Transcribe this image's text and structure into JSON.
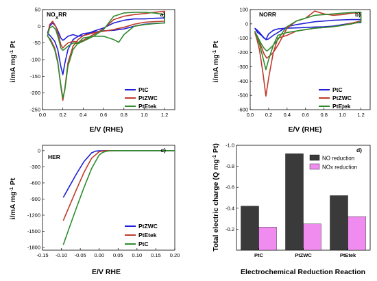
{
  "chart_data": [
    {
      "id": "a",
      "type": "line",
      "panel_letter": "a)",
      "panel_label": "NO",
      "panel_label_sub": "X",
      "panel_label_suffix": "RR",
      "xlabel": "E/V (RHE)",
      "ylabel": "i/mA mg",
      "ylabel_sup": "-1",
      "ylabel_suffix": " Pt",
      "xlim": [
        0,
        1.3
      ],
      "ylim": [
        -250,
        50
      ],
      "xticks": [
        0.0,
        0.2,
        0.4,
        0.6,
        0.8,
        1.0,
        1.2
      ],
      "xtick_labels": [
        "0.0",
        "0.2",
        "0.4",
        "0.6",
        "0.8",
        "1.0",
        "1.2"
      ],
      "yticks": [
        50,
        0,
        -50,
        -100,
        -150,
        -200,
        -250
      ],
      "ytick_labels": [
        "50",
        "0",
        "-50",
        "-100",
        "-150",
        "-200",
        "-250"
      ],
      "legend_position": "bottom-right",
      "series": [
        {
          "name": "PtC",
          "color": "#1f1fd8",
          "x": [
            0.05,
            0.07,
            0.1,
            0.13,
            0.16,
            0.18,
            0.2,
            0.22,
            0.25,
            0.3,
            0.35,
            0.4,
            0.5,
            0.6,
            0.7,
            0.8,
            0.9,
            1.0,
            1.1,
            1.2,
            1.2,
            1.1,
            1.0,
            0.9,
            0.8,
            0.75,
            0.7,
            0.6,
            0.5,
            0.4,
            0.35,
            0.3,
            0.25,
            0.22,
            0.2,
            0.18,
            0.15,
            0.12,
            0.08,
            0.05
          ],
          "y": [
            -20,
            0,
            10,
            0,
            -20,
            -35,
            -42,
            -38,
            -30,
            -25,
            -30,
            -28,
            -15,
            -5,
            10,
            18,
            22,
            22,
            24,
            25,
            10,
            9,
            6,
            0,
            -8,
            -10,
            -12,
            -14,
            -18,
            -22,
            -30,
            -40,
            -70,
            -110,
            -145,
            -120,
            -70,
            -45,
            -30,
            -20
          ]
        },
        {
          "name": "PtZWC",
          "color": "#c0392b",
          "x": [
            0.05,
            0.07,
            0.1,
            0.13,
            0.16,
            0.18,
            0.2,
            0.22,
            0.25,
            0.3,
            0.35,
            0.4,
            0.5,
            0.6,
            0.7,
            0.8,
            0.9,
            1.0,
            1.1,
            1.2,
            1.2,
            1.1,
            1.0,
            0.9,
            0.8,
            0.75,
            0.7,
            0.6,
            0.5,
            0.4,
            0.35,
            0.3,
            0.25,
            0.22,
            0.2,
            0.18,
            0.15,
            0.12,
            0.08,
            0.05
          ],
          "y": [
            -30,
            5,
            15,
            0,
            -30,
            -55,
            -65,
            -58,
            -50,
            -45,
            -48,
            -42,
            -25,
            -8,
            20,
            30,
            35,
            38,
            42,
            45,
            15,
            14,
            12,
            6,
            -3,
            -6,
            -10,
            -15,
            -20,
            -28,
            -40,
            -60,
            -110,
            -185,
            -222,
            -180,
            -105,
            -65,
            -40,
            -30
          ]
        },
        {
          "name": "PtEtek",
          "color": "#2e8b2e",
          "x": [
            0.05,
            0.07,
            0.1,
            0.13,
            0.16,
            0.18,
            0.2,
            0.22,
            0.25,
            0.3,
            0.35,
            0.4,
            0.5,
            0.6,
            0.7,
            0.8,
            0.9,
            1.0,
            1.1,
            1.2,
            1.2,
            1.1,
            1.0,
            0.9,
            0.8,
            0.75,
            0.7,
            0.6,
            0.5,
            0.4,
            0.35,
            0.3,
            0.25,
            0.22,
            0.2,
            0.18,
            0.15,
            0.12,
            0.08,
            0.05
          ],
          "y": [
            -28,
            -5,
            0,
            -10,
            -40,
            -65,
            -72,
            -68,
            -60,
            -50,
            -52,
            -45,
            -30,
            -10,
            30,
            40,
            42,
            42,
            40,
            35,
            10,
            8,
            5,
            0,
            -25,
            -48,
            -40,
            -30,
            -30,
            -35,
            -50,
            -70,
            -120,
            -190,
            -215,
            -175,
            -110,
            -70,
            -45,
            -28
          ]
        }
      ]
    },
    {
      "id": "b",
      "type": "line",
      "panel_letter": "b)",
      "panel_label": "NORR",
      "xlabel": "E/V (RHE)",
      "ylabel": "i/mA mg",
      "ylabel_sup": "-1",
      "ylabel_suffix": " Pt",
      "xlim": [
        0,
        1.3
      ],
      "ylim": [
        -600,
        100
      ],
      "xticks": [
        0.0,
        0.2,
        0.4,
        0.6,
        0.8,
        1.0,
        1.2
      ],
      "xtick_labels": [
        "0.0",
        "0.2",
        "0.4",
        "0.6",
        "0.8",
        "1.0",
        "1.2"
      ],
      "yticks": [
        100,
        0,
        -100,
        -200,
        -300,
        -400,
        -500,
        -600
      ],
      "ytick_labels": [
        "100",
        "0",
        "-100",
        "-200",
        "-300",
        "-400",
        "-500",
        "-600"
      ],
      "legend_position": "bottom-right",
      "series": [
        {
          "name": "PtC",
          "color": "#1f1fd8",
          "x": [
            0.05,
            0.08,
            0.12,
            0.15,
            0.18,
            0.2,
            0.25,
            0.3,
            0.35,
            0.4,
            0.5,
            0.6,
            0.7,
            0.8,
            0.9,
            1.0,
            1.1,
            1.2,
            1.2,
            1.1,
            1.0,
            0.9,
            0.8,
            0.7,
            0.6,
            0.5,
            0.4,
            0.3,
            0.25,
            0.2,
            0.17,
            0.14,
            0.1,
            0.07,
            0.05
          ],
          "y": [
            -30,
            -60,
            -80,
            -100,
            -110,
            -105,
            -80,
            -60,
            -40,
            -20,
            -5,
            5,
            15,
            20,
            25,
            28,
            30,
            30,
            10,
            5,
            -5,
            -15,
            -20,
            -22,
            -25,
            -28,
            -30,
            -35,
            -45,
            -70,
            -110,
            -90,
            -60,
            -40,
            -30
          ]
        },
        {
          "name": "PtZWC",
          "color": "#c0392b",
          "x": [
            0.05,
            0.08,
            0.12,
            0.15,
            0.18,
            0.2,
            0.25,
            0.3,
            0.35,
            0.4,
            0.5,
            0.6,
            0.7,
            0.8,
            0.9,
            1.0,
            1.1,
            1.2,
            1.2,
            1.1,
            1.0,
            0.9,
            0.8,
            0.7,
            0.6,
            0.5,
            0.4,
            0.3,
            0.25,
            0.2,
            0.17,
            0.14,
            0.1,
            0.07,
            0.05
          ],
          "y": [
            -60,
            -100,
            -160,
            -210,
            -240,
            -230,
            -200,
            -150,
            -90,
            -30,
            20,
            40,
            90,
            70,
            60,
            65,
            75,
            80,
            20,
            5,
            -10,
            -20,
            -25,
            -30,
            -40,
            -50,
            -80,
            -100,
            -200,
            -380,
            -505,
            -350,
            -180,
            -100,
            -60
          ]
        },
        {
          "name": "PtEtek",
          "color": "#2e8b2e",
          "x": [
            0.05,
            0.08,
            0.12,
            0.15,
            0.18,
            0.2,
            0.25,
            0.3,
            0.35,
            0.4,
            0.5,
            0.6,
            0.7,
            0.8,
            0.9,
            1.0,
            1.1,
            1.2,
            1.2,
            1.1,
            1.0,
            0.9,
            0.8,
            0.7,
            0.6,
            0.5,
            0.4,
            0.3,
            0.25,
            0.2,
            0.17,
            0.14,
            0.1,
            0.07,
            0.05
          ],
          "y": [
            -50,
            -90,
            -140,
            -170,
            -190,
            -180,
            -150,
            -110,
            -60,
            -20,
            20,
            40,
            60,
            65,
            70,
            75,
            80,
            82,
            15,
            0,
            -10,
            -20,
            -25,
            -30,
            -40,
            -50,
            -60,
            -80,
            -150,
            -250,
            -320,
            -240,
            -140,
            -80,
            -50
          ]
        }
      ]
    },
    {
      "id": "c",
      "type": "line",
      "panel_letter": "c)",
      "panel_label": "HER",
      "xlabel": "E/V RHE",
      "ylabel": "i/mA mg",
      "ylabel_sup": "-1",
      "ylabel_suffix": " Pt",
      "xlim": [
        -0.15,
        0.2
      ],
      "ylim": [
        -1850,
        100
      ],
      "xticks": [
        -0.15,
        -0.1,
        -0.05,
        0.0,
        0.05,
        0.1,
        0.15,
        0.2
      ],
      "xtick_labels": [
        "-0.15",
        "-0.10",
        "-0.05",
        "0.00",
        "0.05",
        "0.10",
        "0.15",
        "0.20"
      ],
      "yticks": [
        0,
        -300,
        -600,
        -900,
        -1200,
        -1500,
        -1800
      ],
      "ytick_labels": [
        "0",
        "-300",
        "-600",
        "-900",
        "-1200",
        "-1500",
        "-1800"
      ],
      "legend_position": "bottom-right",
      "series": [
        {
          "name": "PtZWC",
          "color": "#1f1fd8",
          "x": [
            -0.095,
            -0.08,
            -0.06,
            -0.04,
            -0.02,
            -0.01,
            0.0,
            0.02,
            0.05,
            0.1,
            0.15,
            0.2
          ],
          "y": [
            -870,
            -680,
            -430,
            -200,
            -40,
            -10,
            -3,
            0,
            0,
            0,
            0,
            0
          ]
        },
        {
          "name": "PtEtek",
          "color": "#c0392b",
          "x": [
            -0.095,
            -0.08,
            -0.06,
            -0.04,
            -0.02,
            0.0,
            0.01,
            0.02,
            0.05,
            0.1,
            0.15,
            0.2
          ],
          "y": [
            -1300,
            -1050,
            -720,
            -400,
            -140,
            -20,
            -5,
            0,
            0,
            0,
            0,
            0
          ]
        },
        {
          "name": "PtC",
          "color": "#2e8b2e",
          "x": [
            -0.095,
            -0.08,
            -0.06,
            -0.04,
            -0.02,
            0.0,
            0.01,
            0.02,
            0.03,
            0.05,
            0.1,
            0.15,
            0.2
          ],
          "y": [
            -1750,
            -1450,
            -1060,
            -680,
            -330,
            -80,
            -30,
            -10,
            -2,
            0,
            0,
            0,
            0
          ]
        }
      ]
    },
    {
      "id": "d",
      "type": "bar",
      "panel_letter": "d)",
      "xlabel": "Electrochemical Reduction Reaction",
      "ylabel": "Total electric charge (Q mg",
      "ylabel_sup": "-1",
      "ylabel_suffix": " Pt)",
      "categories": [
        "PtC",
        "PtZWC",
        "PtEtek"
      ],
      "ylim": [
        0,
        -1.0
      ],
      "yticks": [
        -1.0,
        -0.8,
        -0.6,
        -0.4,
        -0.2
      ],
      "ytick_labels": [
        "-1.0",
        "-0.8",
        "-0.6",
        "-0.4",
        "-0.2"
      ],
      "legend_position": "top-right",
      "series": [
        {
          "name": "NO reduction",
          "color": "#3a3a3a",
          "values": [
            -0.42,
            -0.92,
            -0.52
          ]
        },
        {
          "name": "NOx reduction",
          "color": "#f08cf0",
          "values": [
            -0.22,
            -0.25,
            -0.32
          ]
        }
      ]
    }
  ]
}
